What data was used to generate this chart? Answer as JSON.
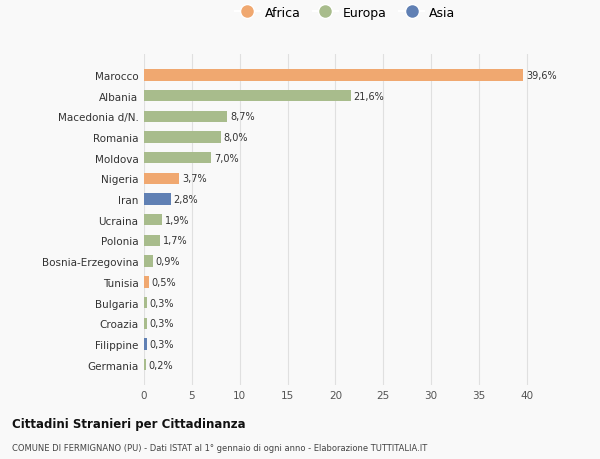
{
  "countries": [
    "Marocco",
    "Albania",
    "Macedonia d/N.",
    "Romania",
    "Moldova",
    "Nigeria",
    "Iran",
    "Ucraina",
    "Polonia",
    "Bosnia-Erzegovina",
    "Tunisia",
    "Bulgaria",
    "Croazia",
    "Filippine",
    "Germania"
  ],
  "values": [
    39.6,
    21.6,
    8.7,
    8.0,
    7.0,
    3.7,
    2.8,
    1.9,
    1.7,
    0.9,
    0.5,
    0.3,
    0.3,
    0.3,
    0.2
  ],
  "labels": [
    "39,6%",
    "21,6%",
    "8,7%",
    "8,0%",
    "7,0%",
    "3,7%",
    "2,8%",
    "1,9%",
    "1,7%",
    "0,9%",
    "0,5%",
    "0,3%",
    "0,3%",
    "0,3%",
    "0,2%"
  ],
  "continents": [
    "Africa",
    "Europa",
    "Europa",
    "Europa",
    "Europa",
    "Africa",
    "Asia",
    "Europa",
    "Europa",
    "Europa",
    "Africa",
    "Europa",
    "Europa",
    "Asia",
    "Europa"
  ],
  "colors": {
    "Africa": "#F0A870",
    "Europa": "#A8BC8C",
    "Asia": "#6080B4"
  },
  "legend_labels": [
    "Africa",
    "Europa",
    "Asia"
  ],
  "title1": "Cittadini Stranieri per Cittadinanza",
  "title2": "COMUNE DI FERMIGNANO (PU) - Dati ISTAT al 1° gennaio di ogni anno - Elaborazione TUTTITALIA.IT",
  "xlim": [
    0,
    42
  ],
  "xticks": [
    0,
    5,
    10,
    15,
    20,
    25,
    30,
    35,
    40
  ],
  "background_color": "#f9f9f9",
  "grid_color": "#e0e0e0"
}
